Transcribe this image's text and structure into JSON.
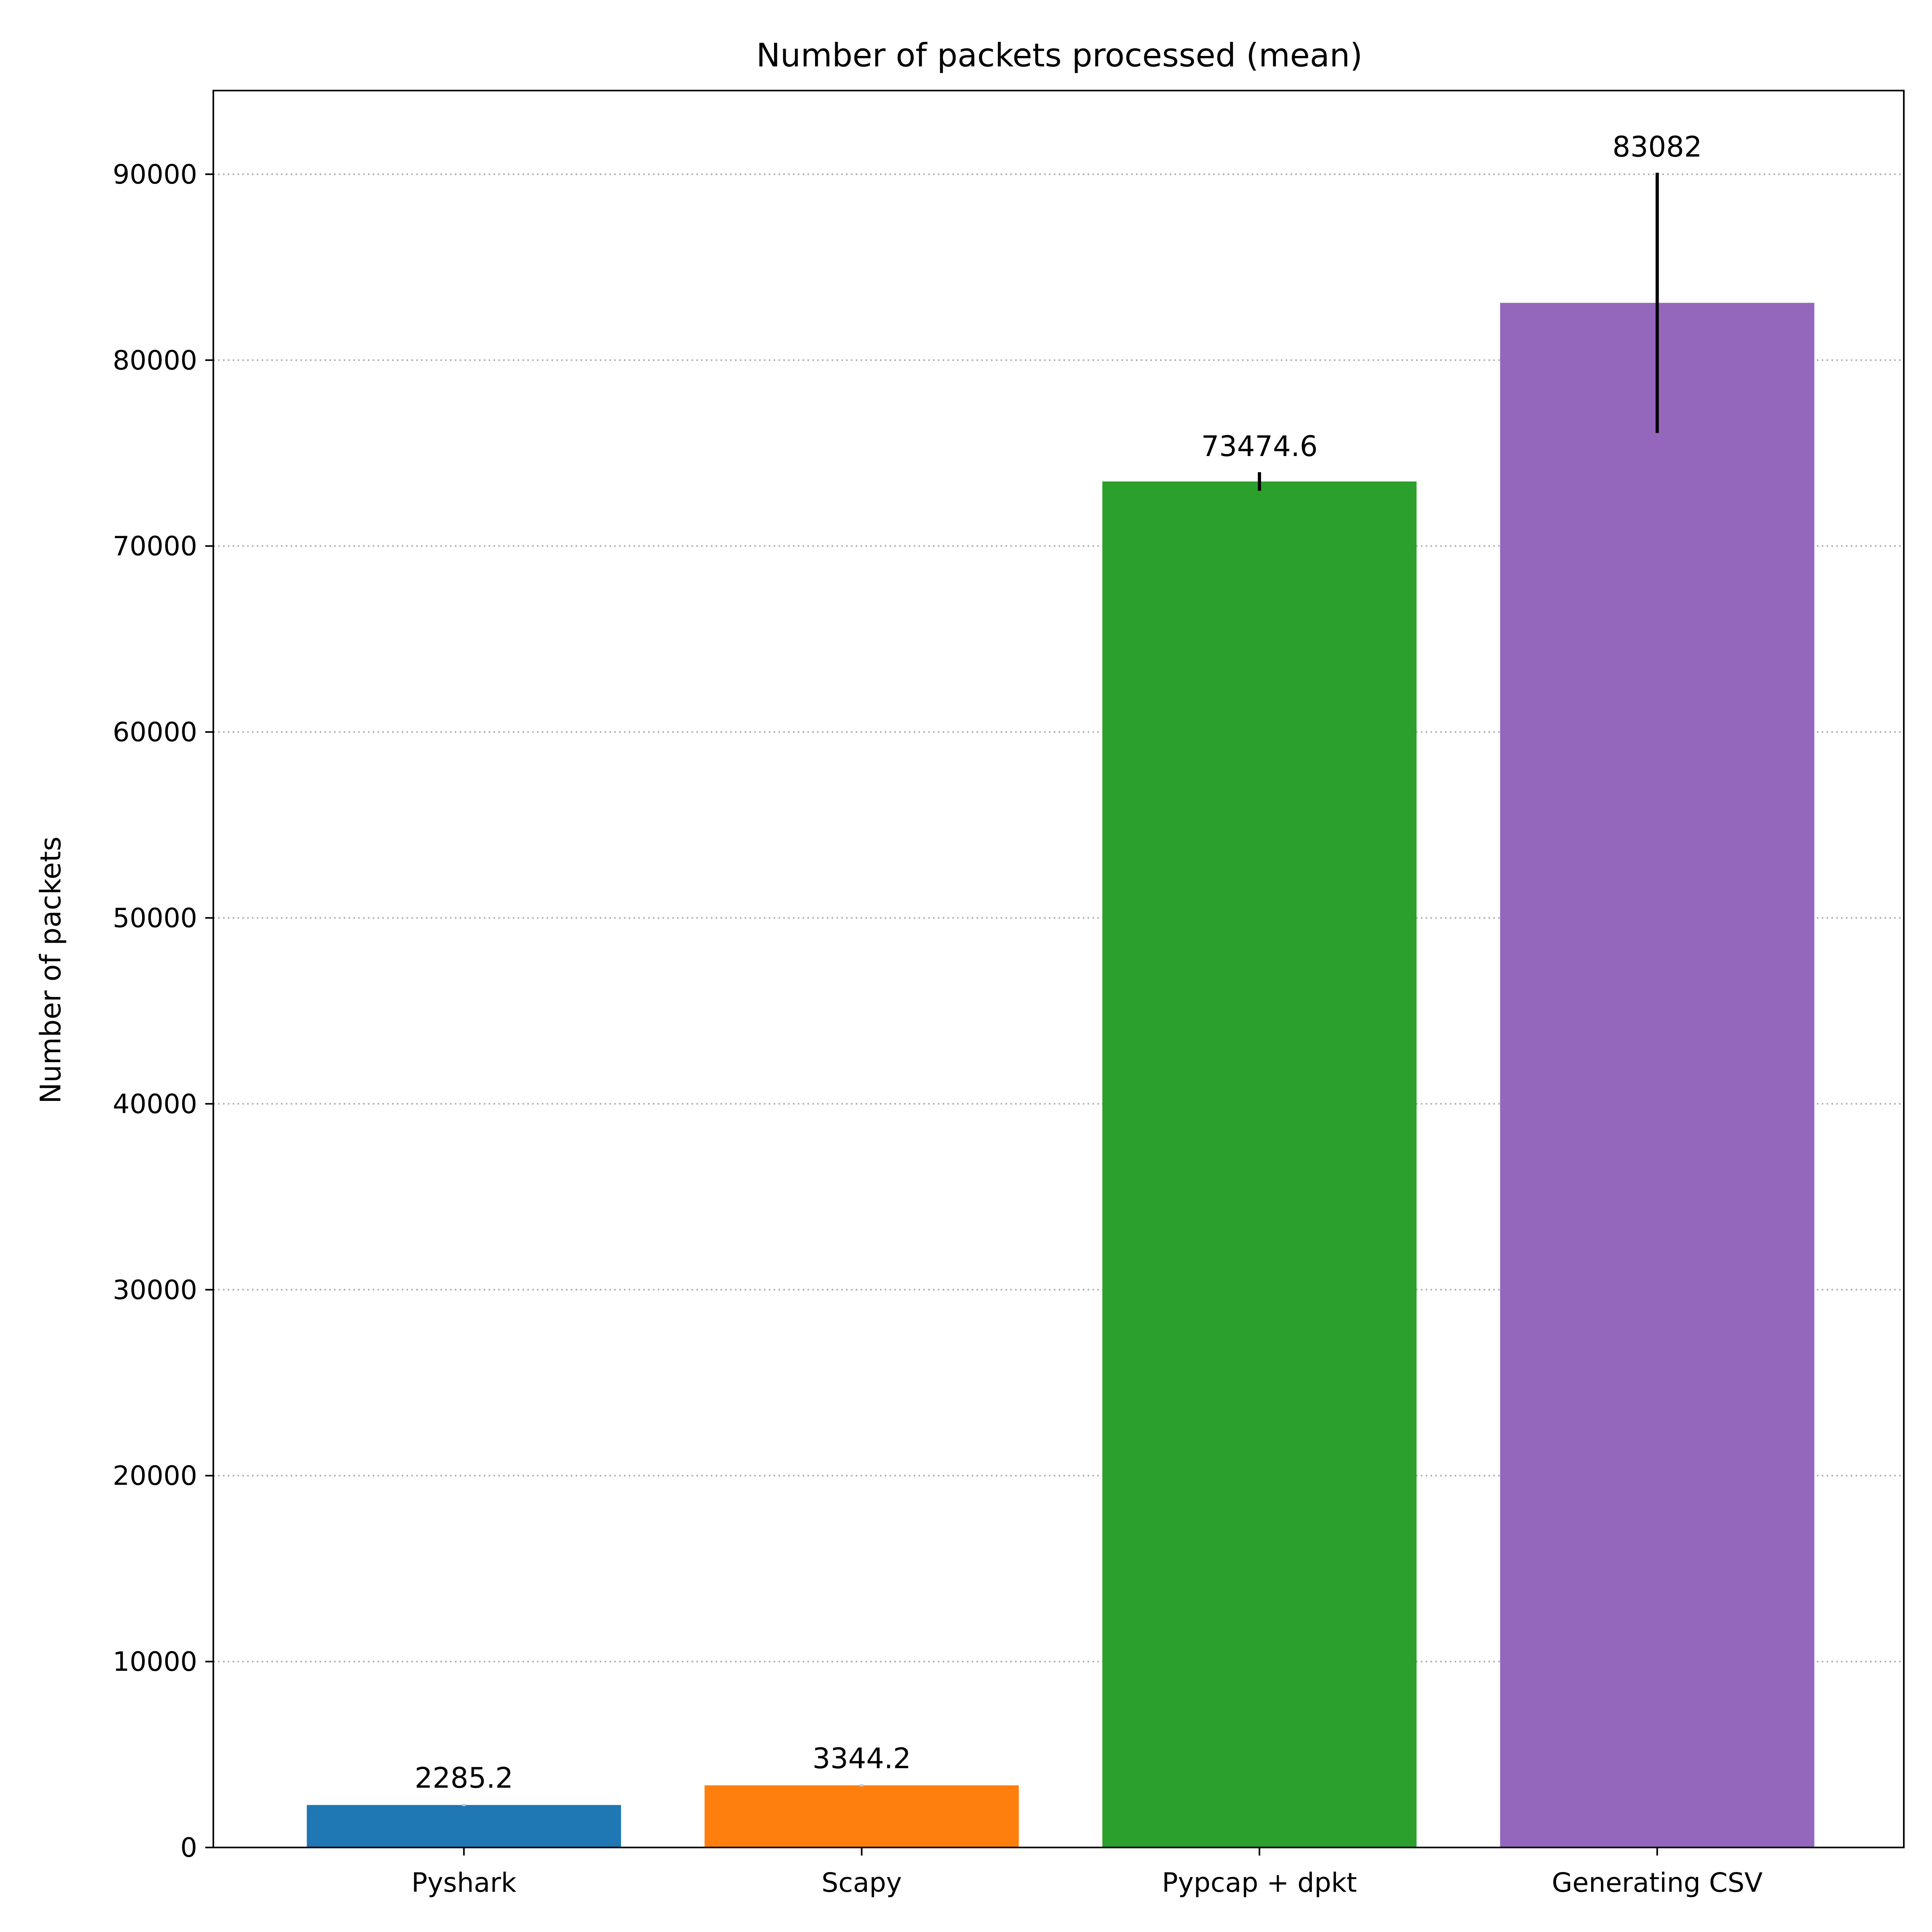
{
  "chart_data": {
    "type": "bar",
    "title": "Number of packets processed (mean)",
    "xlabel": "",
    "ylabel": "Number of packets",
    "categories": [
      "Pyshark",
      "Scapy",
      "Pypcap + dpkt",
      "Generating CSV"
    ],
    "values": [
      2285.2,
      3344.2,
      73474.6,
      83082
    ],
    "value_labels": [
      "2285.2",
      "3344.2",
      "73474.6",
      "83082"
    ],
    "error": [
      60,
      60,
      500,
      7000
    ],
    "colors": [
      "#1f77b4",
      "#ff7f0e",
      "#2ca02c",
      "#9467bd"
    ],
    "ylim": [
      0,
      94500
    ],
    "yticks": [
      0,
      10000,
      20000,
      30000,
      40000,
      50000,
      60000,
      70000,
      80000,
      90000
    ],
    "grid": "y-dotted",
    "legend": "none"
  }
}
